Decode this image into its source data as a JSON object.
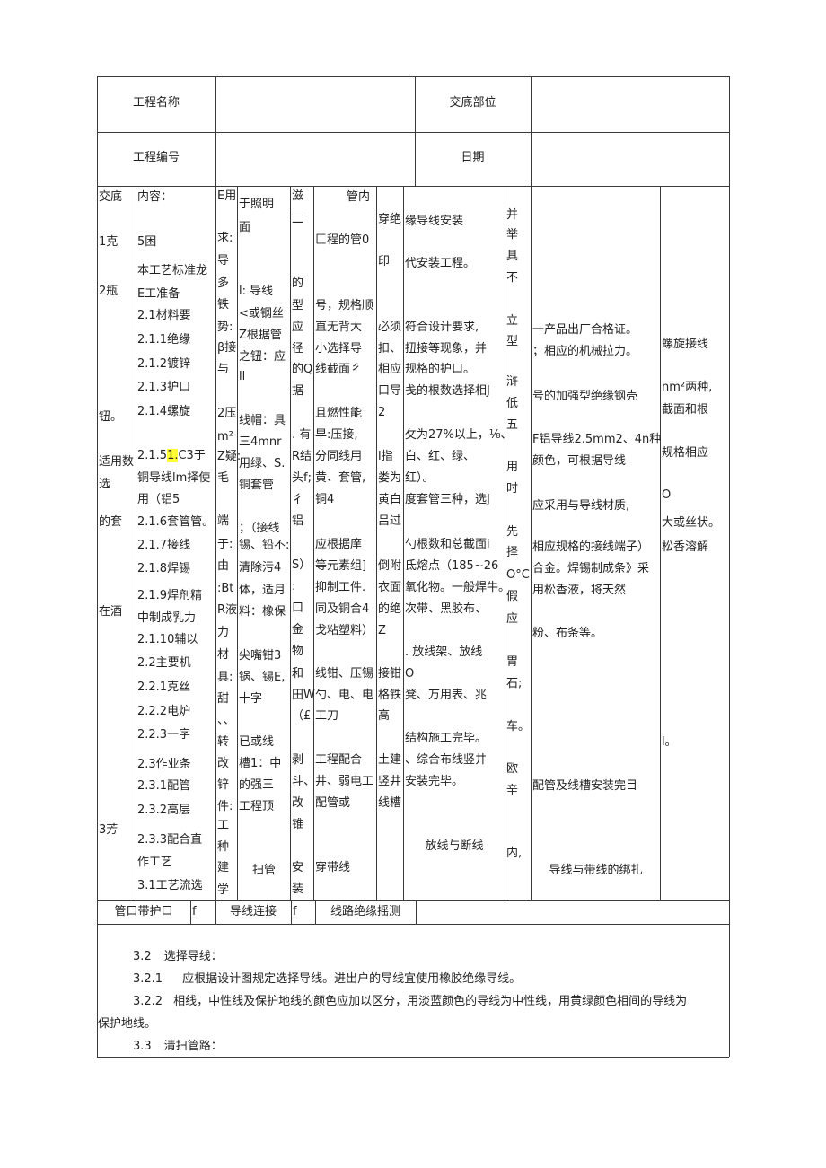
{
  "header": {
    "project_name_label": "工程名称",
    "project_name_value": "",
    "disclosure_part_label": "交底部位",
    "disclosure_part_value": "",
    "project_no_label": "工程编号",
    "project_no_value": "",
    "date_label": "日期",
    "date_value": ""
  },
  "body_columns": [
    [
      "交底",
      "1克",
      "2瓶",
      "钮。",
      "适用数",
      "选",
      "的套",
      "在酒",
      "3芳"
    ],
    [
      "内容：",
      "5困",
      "本工艺标准龙",
      "E工准备",
      "2.1材料要",
      "2.1.1绝缘",
      "2.1.2镀锌",
      "2.1.3护口",
      "2.1.4螺旋",
      "2.1.51.C3于",
      "铜导线lm择使",
      "用（铝5",
      "2.1.6套管管。",
      "2.1.7接线",
      "2.1.8焊锡",
      "2.1.9焊剂精",
      "中制成乳力",
      "2.1.10辅以",
      "2.2主要机",
      "2.2.1克丝",
      "2.2.2电炉",
      "2.2.3一字",
      "2.3作业条",
      "2.3.1配管",
      "2.3.2高层",
      "2.3.3配合直",
      "作工艺",
      "3.1工艺流选"
    ],
    [
      "E用",
      "求:",
      "导",
      "多",
      "铁",
      "势:",
      "β接",
      "与",
      "2压",
      "m²",
      "Z疑:",
      "毛",
      "端",
      "于:",
      "由",
      ":Bt",
      "R液",
      "力",
      "材",
      "具:",
      "甜",
      "、、",
      "转",
      "改",
      "锌",
      "件:",
      "工",
      "种",
      "建",
      "学"
    ],
    [
      "于照明",
      "面",
      "l:  导线",
      "<或钢丝",
      "Z根据管",
      "之钮：应",
      "ll",
      "线帽：具",
      "三4mnr",
      "用绿、S.",
      "铜套管",
      "；（接线",
      "锡、铅不:",
      "清除污4",
      "体，适月",
      "料：橡保",
      "尖嘴钳3",
      "锅、锡E,",
      "十字",
      "已或线",
      "槽1：中",
      "的强三",
      "工程顶",
      "扫管"
    ],
    [
      "滋",
      "二",
      "的",
      "型",
      "应",
      "径",
      "的Q",
      "据",
      ". 有",
      "R结",
      "头f;",
      "彳",
      "铝",
      "S）",
      ":",
      "口",
      "金",
      "物",
      "和",
      "田W",
      "（£",
      "剥",
      "斗、",
      "改",
      "锥",
      "安",
      "装"
    ],
    [
      "管内",
      "匚程的管0",
      "号，规格顺",
      "直无背大",
      "小选择导",
      "线截面彳",
      "且燃性能",
      "早:压接,",
      "分同线用",
      "黄、套管,",
      "铜4",
      "应根据庠",
      "等元素组]",
      "抑制工件.",
      "同及铜合4",
      "戈粘塑料）",
      "线钳、压锡",
      "勺、电、电",
      "工刀",
      "工程配合",
      "井、弱电工",
      "配管或",
      "穿带线"
    ],
    [
      "穿绝",
      "印",
      "必须",
      "扣、",
      "相应",
      "口导",
      "2",
      "l指",
      "娄为",
      "黄白",
      "吕过",
      "倒附",
      "衣面",
      "的绝",
      "Z",
      "接钳",
      "格铁",
      "高",
      "土建",
      "竖井",
      "线槽"
    ],
    [
      "缘导线安装",
      "代安装工程。",
      "符合设计要求,",
      "扭接等现象，并",
      "规格的护口。",
      "戋的根数选择相J",
      "攵为27%以上，⅛、",
      "白、红、绿、",
      "红）。",
      "度套管三种，选J",
      "勺根数和总截面i",
      "氐熔点（185~26",
      "氧化物。一般焊牛。",
      "次带、黑胶布、",
      ". 放线架、放线",
      "O",
      "凳、万用表、兆",
      "结构施工完毕。",
      "、综合布线竖井",
      "安装完毕。",
      "放线与断线"
    ],
    [
      "并",
      "举",
      "具",
      "不",
      "立",
      "型",
      "浒",
      "低",
      "五",
      "用",
      "时",
      "先",
      "择",
      "O°C",
      "假",
      "应",
      "胃",
      "石;",
      "车。",
      "欧",
      "辛",
      "内,"
    ],
    [
      "一产品出厂合格证。",
      "；相应的机械拉力。",
      "号的加强型绝缘钢壳",
      "F铝导线2.5mm2、4n种",
      "颜色，可根据导线",
      "应采用与导线材质,",
      "相应规格的接线端子）",
      "合金。焊锡制成条》采",
      "用松香液，将天然",
      "粉、布条等。",
      "配管及线槽安装完目",
      "导线与带线的绑扎"
    ],
    [
      "螺旋接线",
      "nm²两种,",
      "截面和根",
      "规格相应",
      "O",
      "大或丝状。",
      "松香溶解",
      "l。"
    ]
  ],
  "bottom_row": {
    "item1": "管口带护口",
    "mark1": "f",
    "item2": "导线连接",
    "mark2": "f",
    "item3": "线路绝缘摇测"
  },
  "paragraphs": [
    {
      "num": "3.2",
      "text": "选择导线："
    },
    {
      "num": "3.2.1",
      "text": "应根据设计图规定选择导线。进出户的导线宜使用橡胶绝缘导线。"
    },
    {
      "num": "3.2.2",
      "text": "相线，中性线及保护地线的颜色应加以区分，用淡蓝颜色的导线为中性线，用黄绿颜色相间的导线为"
    },
    {
      "num": "",
      "text": "保护地线。"
    },
    {
      "num": "3.3",
      "text": "清扫管路："
    }
  ],
  "colors": {
    "highlight": "#ffff33",
    "border": "#3a3a3a"
  }
}
